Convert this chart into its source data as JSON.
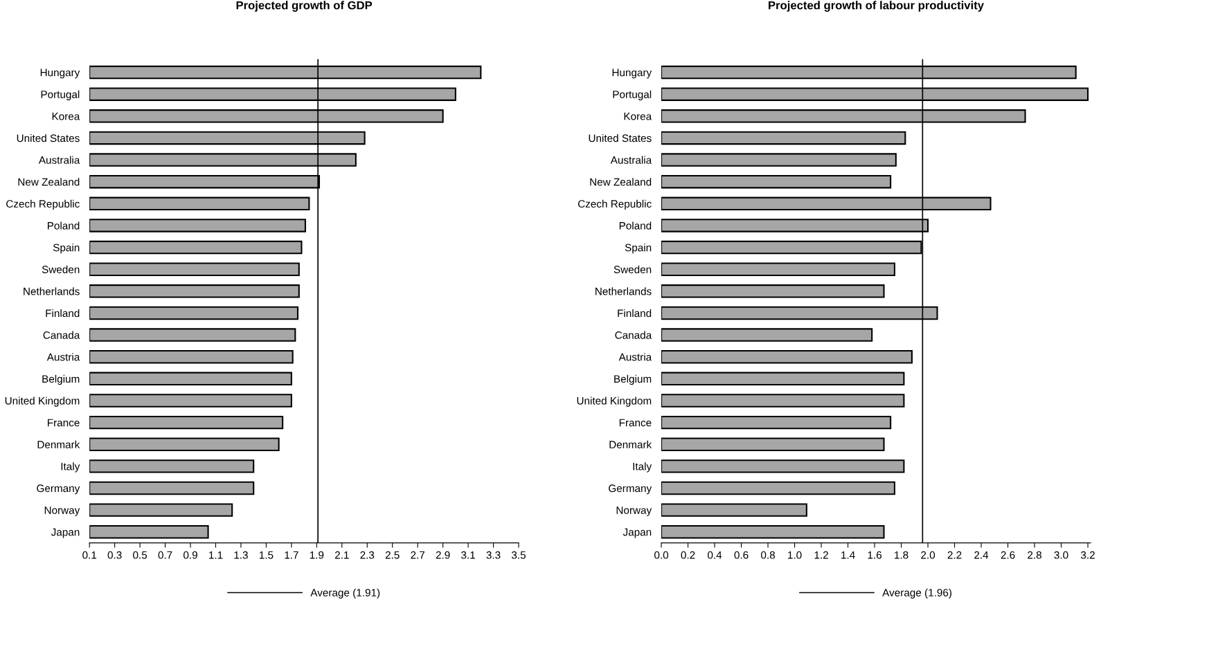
{
  "chart_data": [
    {
      "type": "bar",
      "orientation": "horizontal",
      "title": "Projected growth of GDP",
      "categories": [
        "Hungary",
        "Portugal",
        "Korea",
        "United States",
        "Australia",
        "New Zealand",
        "Czech Republic",
        "Poland",
        "Spain",
        "Sweden",
        "Netherlands",
        "Finland",
        "Canada",
        "Austria",
        "Belgium",
        "United Kingdom",
        "France",
        "Denmark",
        "Italy",
        "Germany",
        "Norway",
        "Japan"
      ],
      "values": [
        3.2,
        3.0,
        2.9,
        2.28,
        2.21,
        1.92,
        1.84,
        1.81,
        1.78,
        1.76,
        1.76,
        1.75,
        1.73,
        1.71,
        1.7,
        1.7,
        1.63,
        1.6,
        1.4,
        1.4,
        1.23,
        1.04
      ],
      "color": "#a6a6a6",
      "xlim": [
        0.1,
        3.5
      ],
      "xticks": [
        0.1,
        0.3,
        0.5,
        0.7,
        0.9,
        1.1,
        1.3,
        1.5,
        1.7,
        1.9,
        2.1,
        2.3,
        2.5,
        2.7,
        2.9,
        3.1,
        3.3,
        3.5
      ],
      "ref_lines": [
        {
          "axis": "x",
          "value": 1.91,
          "label": "Average (1.91)",
          "color": "#000000",
          "line_style": "solid"
        }
      ],
      "grid": false,
      "legend": "bottom"
    },
    {
      "type": "bar",
      "orientation": "horizontal",
      "title": "Projected growth of labour productivity",
      "categories": [
        "Hungary",
        "Portugal",
        "Korea",
        "United States",
        "Australia",
        "New Zealand",
        "Czech Republic",
        "Poland",
        "Spain",
        "Sweden",
        "Netherlands",
        "Finland",
        "Canada",
        "Austria",
        "Belgium",
        "United Kingdom",
        "France",
        "Denmark",
        "Italy",
        "Germany",
        "Norway",
        "Japan"
      ],
      "values": [
        3.11,
        3.2,
        2.73,
        1.83,
        1.76,
        1.72,
        2.47,
        2.0,
        1.95,
        1.75,
        1.67,
        2.07,
        1.58,
        1.88,
        1.82,
        1.82,
        1.72,
        1.67,
        1.82,
        1.75,
        1.09,
        1.67
      ],
      "color": "#a6a6a6",
      "xlim": [
        0.0,
        3.22
      ],
      "xticks": [
        {
          "value": 0,
          "label": "0.0"
        },
        0.2,
        0.4,
        0.6,
        0.8,
        {
          "value": 1,
          "label": "1.0"
        },
        1.2,
        1.4,
        1.6,
        1.8,
        {
          "value": 2,
          "label": "2.0"
        },
        2.2,
        2.4,
        2.6,
        2.8,
        {
          "value": 3,
          "label": "3.0"
        },
        3.2
      ],
      "ref_lines": [
        {
          "axis": "x",
          "value": 1.96,
          "label": "Average (1.96)",
          "color": "#000000",
          "line_style": "solid"
        }
      ],
      "grid": false,
      "legend": "bottom"
    }
  ]
}
